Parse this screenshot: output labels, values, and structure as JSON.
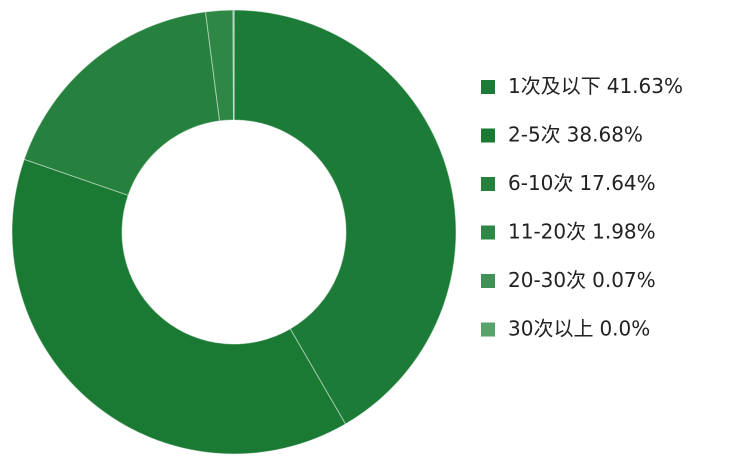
{
  "chart_data": {
    "type": "donut",
    "categories": [
      "1次及以下",
      "2-5次",
      "6-10次",
      "11-20次",
      "20-30次",
      "30次以上"
    ],
    "values": [
      41.63,
      38.68,
      17.64,
      1.98,
      0.07,
      0.0
    ],
    "value_labels": [
      "41.63%",
      "38.68%",
      "17.64%",
      "1.98%",
      "0.07%",
      "0.0%"
    ],
    "colors": [
      "#1c7b37",
      "#1a7a34",
      "#26813e",
      "#2f8746",
      "#3f9156",
      "#58a26c"
    ],
    "legend": "right"
  }
}
